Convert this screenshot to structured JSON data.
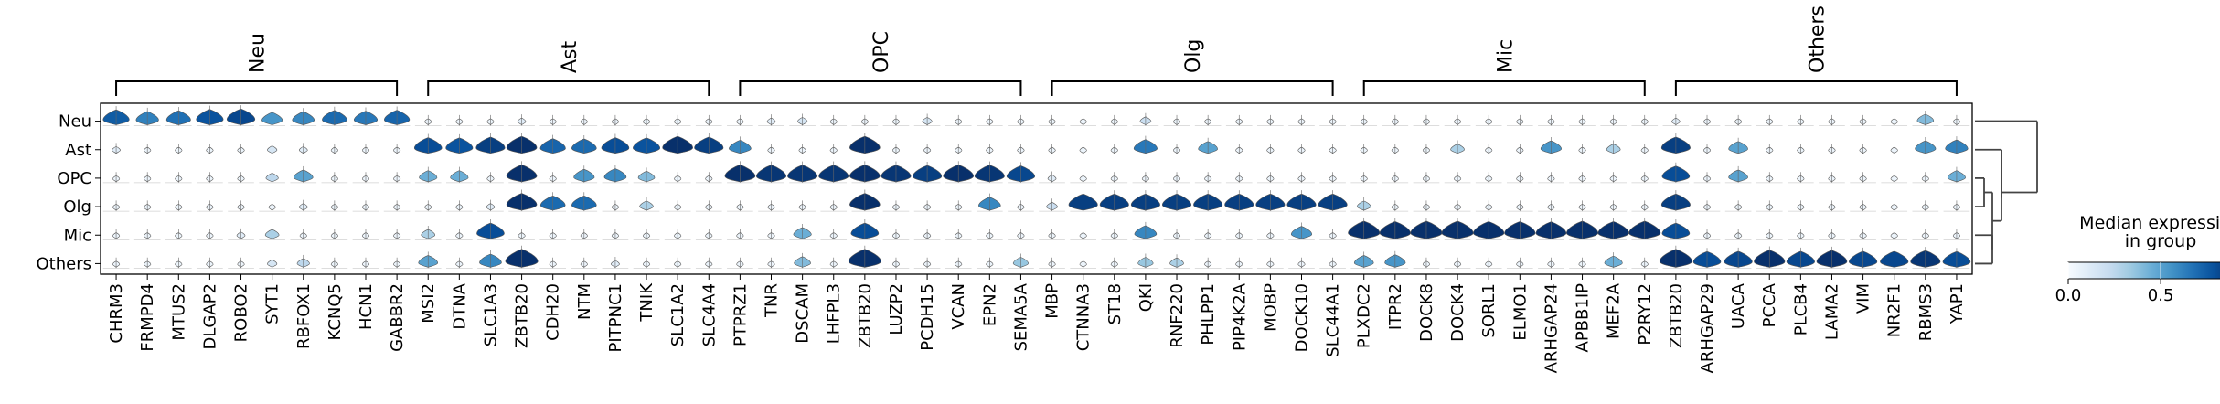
{
  "chart_data": {
    "type": "stacked violin",
    "groups": [
      "Neu",
      "Ast",
      "OPC",
      "Olg",
      "Mic",
      "Others"
    ],
    "gene_groups": [
      {
        "label": "Neu",
        "genes": [
          "CHRM3",
          "FRMPD4",
          "MTUS2",
          "DLGAP2",
          "ROBO2",
          "SYT1",
          "RBFOX1",
          "KCNQ5",
          "HCN1",
          "GABBR2"
        ]
      },
      {
        "label": "Ast",
        "genes": [
          "MSI2",
          "DTNA",
          "SLC1A3",
          "ZBTB20",
          "CDH20",
          "NTM",
          "PITPNC1",
          "TNIK",
          "SLC1A2",
          "SLC4A4"
        ]
      },
      {
        "label": "OPC",
        "genes": [
          "PTPRZ1",
          "TNR",
          "DSCAM",
          "LHFPL3",
          "ZBTB20",
          "LUZP2",
          "PCDH15",
          "VCAN",
          "EPN2",
          "SEMA5A"
        ]
      },
      {
        "label": "Olg",
        "genes": [
          "MBP",
          "CTNNA3",
          "ST18",
          "QKI",
          "RNF220",
          "PHLPP1",
          "PIP4K2A",
          "MOBP",
          "DOCK10",
          "SLC44A1"
        ]
      },
      {
        "label": "Mic",
        "genes": [
          "PLXDC2",
          "ITPR2",
          "DOCK8",
          "DOCK4",
          "SORL1",
          "ELMO1",
          "ARHGAP24",
          "APBB1IP",
          "MEF2A",
          "P2RY12"
        ]
      },
      {
        "label": "Others",
        "genes": [
          "ZBTB20",
          "ARHGAP29",
          "UACA",
          "PCCA",
          "PLCB4",
          "LAMA2",
          "VIM",
          "NR2F1",
          "RBMS3",
          "YAP1"
        ]
      }
    ],
    "median_expression": [
      [
        0.75,
        0.62,
        0.68,
        0.78,
        0.82,
        0.55,
        0.6,
        0.7,
        0.65,
        0.72,
        0.05,
        0.05,
        0.05,
        0.1,
        0.05,
        0.05,
        0.05,
        0.05,
        0.05,
        0.05,
        0.05,
        0.1,
        0.15,
        0.05,
        0.05,
        0.05,
        0.15,
        0.05,
        0.05,
        0.05,
        0.05,
        0.05,
        0.05,
        0.2,
        0.05,
        0.05,
        0.05,
        0.05,
        0.05,
        0.05,
        0.05,
        0.05,
        0.05,
        0.05,
        0.05,
        0.05,
        0.05,
        0.05,
        0.05,
        0.05,
        0.1,
        0.05,
        0.05,
        0.05,
        0.05,
        0.05,
        0.05,
        0.05,
        0.4,
        0.05
      ],
      [
        0.1,
        0.05,
        0.05,
        0.05,
        0.05,
        0.15,
        0.1,
        0.05,
        0.05,
        0.05,
        0.8,
        0.78,
        0.85,
        0.9,
        0.72,
        0.7,
        0.8,
        0.78,
        0.9,
        0.85,
        0.6,
        0.05,
        0.05,
        0.05,
        0.9,
        0.05,
        0.05,
        0.05,
        0.05,
        0.05,
        0.05,
        0.05,
        0.05,
        0.65,
        0.05,
        0.5,
        0.05,
        0.05,
        0.05,
        0.05,
        0.05,
        0.05,
        0.05,
        0.3,
        0.05,
        0.05,
        0.55,
        0.05,
        0.3,
        0.05,
        0.85,
        0.05,
        0.5,
        0.05,
        0.05,
        0.05,
        0.05,
        0.05,
        0.55,
        0.62
      ],
      [
        0.05,
        0.05,
        0.05,
        0.05,
        0.05,
        0.25,
        0.5,
        0.05,
        0.05,
        0.05,
        0.45,
        0.45,
        0.05,
        0.9,
        0.05,
        0.55,
        0.6,
        0.4,
        0.05,
        0.05,
        0.9,
        0.88,
        0.88,
        0.88,
        0.9,
        0.88,
        0.85,
        0.9,
        0.88,
        0.82,
        0.1,
        0.05,
        0.05,
        0.05,
        0.05,
        0.05,
        0.05,
        0.05,
        0.05,
        0.05,
        0.05,
        0.05,
        0.05,
        0.05,
        0.05,
        0.05,
        0.05,
        0.05,
        0.05,
        0.05,
        0.8,
        0.05,
        0.5,
        0.05,
        0.05,
        0.05,
        0.05,
        0.05,
        0.05,
        0.45
      ],
      [
        0.05,
        0.05,
        0.05,
        0.05,
        0.05,
        0.05,
        0.1,
        0.05,
        0.05,
        0.05,
        0.05,
        0.05,
        0.1,
        0.9,
        0.7,
        0.7,
        0.05,
        0.3,
        0.05,
        0.05,
        0.05,
        0.05,
        0.05,
        0.05,
        0.9,
        0.05,
        0.05,
        0.05,
        0.6,
        0.05,
        0.2,
        0.85,
        0.85,
        0.85,
        0.85,
        0.85,
        0.85,
        0.85,
        0.85,
        0.85,
        0.3,
        0.05,
        0.05,
        0.05,
        0.05,
        0.05,
        0.05,
        0.05,
        0.05,
        0.05,
        0.85,
        0.05,
        0.05,
        0.05,
        0.05,
        0.05,
        0.05,
        0.05,
        0.05,
        0.05
      ],
      [
        0.05,
        0.05,
        0.05,
        0.05,
        0.1,
        0.3,
        0.05,
        0.05,
        0.05,
        0.05,
        0.3,
        0.05,
        0.8,
        0.05,
        0.05,
        0.05,
        0.05,
        0.05,
        0.05,
        0.05,
        0.05,
        0.05,
        0.45,
        0.05,
        0.8,
        0.05,
        0.05,
        0.05,
        0.05,
        0.05,
        0.05,
        0.05,
        0.05,
        0.6,
        0.05,
        0.05,
        0.05,
        0.05,
        0.55,
        0.05,
        0.95,
        0.92,
        0.95,
        0.95,
        0.92,
        0.92,
        0.9,
        0.95,
        0.92,
        0.95,
        0.8,
        0.05,
        0.05,
        0.05,
        0.05,
        0.05,
        0.05,
        0.05,
        0.05,
        0.05
      ],
      [
        0.05,
        0.05,
        0.05,
        0.05,
        0.05,
        0.15,
        0.25,
        0.05,
        0.05,
        0.05,
        0.5,
        0.05,
        0.6,
        0.98,
        0.05,
        0.05,
        0.1,
        0.05,
        0.05,
        0.05,
        0.05,
        0.05,
        0.4,
        0.05,
        0.98,
        0.05,
        0.05,
        0.05,
        0.05,
        0.35,
        0.05,
        0.05,
        0.05,
        0.35,
        0.3,
        0.05,
        0.05,
        0.05,
        0.05,
        0.05,
        0.5,
        0.55,
        0.05,
        0.05,
        0.05,
        0.05,
        0.05,
        0.05,
        0.45,
        0.05,
        0.98,
        0.8,
        0.82,
        0.92,
        0.82,
        0.9,
        0.82,
        0.82,
        0.88,
        0.8
      ]
    ],
    "colorbar": {
      "title_lines": [
        "Median expression",
        "in group"
      ],
      "ticks": [
        "0.0",
        "0.5"
      ],
      "range": [
        0,
        0.9
      ],
      "colormap": [
        "#f7fbff",
        "#deebf7",
        "#c6dbef",
        "#9ecae1",
        "#6baed6",
        "#4292c6",
        "#2171b5",
        "#08519c",
        "#08306b"
      ]
    },
    "dendrogram": true
  }
}
